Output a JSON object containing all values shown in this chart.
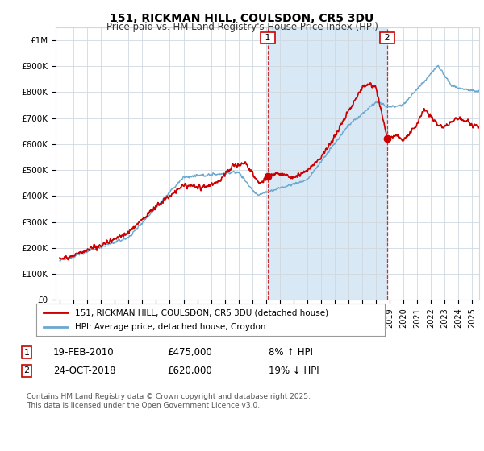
{
  "title": "151, RICKMAN HILL, COULSDON, CR5 3DU",
  "subtitle": "Price paid vs. HM Land Registry's House Price Index (HPI)",
  "legend_label_red": "151, RICKMAN HILL, COULSDON, CR5 3DU (detached house)",
  "legend_label_blue": "HPI: Average price, detached house, Croydon",
  "annotation1_date": "19-FEB-2010",
  "annotation1_price": "£475,000",
  "annotation1_hpi": "8% ↑ HPI",
  "annotation1_year": 2010.13,
  "annotation1_value": 475000,
  "annotation2_date": "24-OCT-2018",
  "annotation2_price": "£620,000",
  "annotation2_hpi": "19% ↓ HPI",
  "annotation2_year": 2018.82,
  "annotation2_value": 620000,
  "footer": "Contains HM Land Registry data © Crown copyright and database right 2025.\nThis data is licensed under the Open Government Licence v3.0.",
  "ylim": [
    0,
    1050000
  ],
  "xlim_start": 1994.7,
  "xlim_end": 2025.5,
  "background_color": "#ffffff",
  "plot_bg_color": "#ffffff",
  "fill_between_color": "#d8e8f4",
  "red_color": "#cc0000",
  "blue_color": "#6aa8d0",
  "grid_color": "#d0d8e0",
  "annotation_box_color": "#cc0000",
  "yticks": [
    0,
    100000,
    200000,
    300000,
    400000,
    500000,
    600000,
    700000,
    800000,
    900000,
    1000000
  ],
  "ylabels": [
    "£0",
    "£100K",
    "£200K",
    "£300K",
    "£400K",
    "£500K",
    "£600K",
    "£700K",
    "£800K",
    "£900K",
    "£1M"
  ]
}
